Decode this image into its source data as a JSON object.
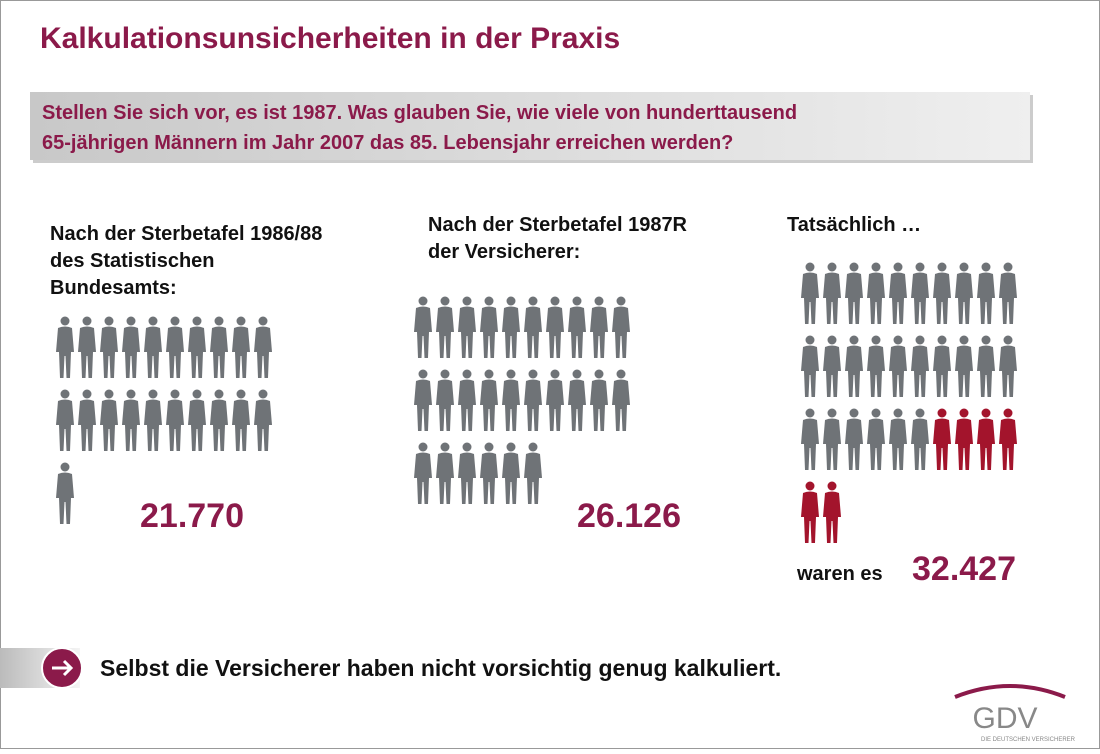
{
  "title": "Kalkulationsunsicherheiten  in der Praxis",
  "question": [
    "Stellen Sie sich vor, es ist 1987. Was glauben Sie, wie viele von hunderttausend",
    "65-jährigen Männern im Jahr 2007 das 85. Lebensjahr erreichen werden?"
  ],
  "columns": [
    {
      "heading": [
        "Nach der Sterbetafel 1986/88",
        "des Statistischen",
        "Bundesamts:"
      ],
      "figure": "21.770"
    },
    {
      "heading": [
        "Nach der Sterbetafel 1987R",
        "der Versicherer:"
      ],
      "figure": "26.126"
    },
    {
      "heading": [
        "Tatsächlich …"
      ],
      "prefix": "waren es",
      "figure": "32.427"
    }
  ],
  "conclusion": "Selbst die Versicherer haben nicht vorsichtig genug kalkuliert.",
  "logo": {
    "name": "GDV",
    "tagline": "DIE DEUTSCHEN VERSICHERER"
  }
}
